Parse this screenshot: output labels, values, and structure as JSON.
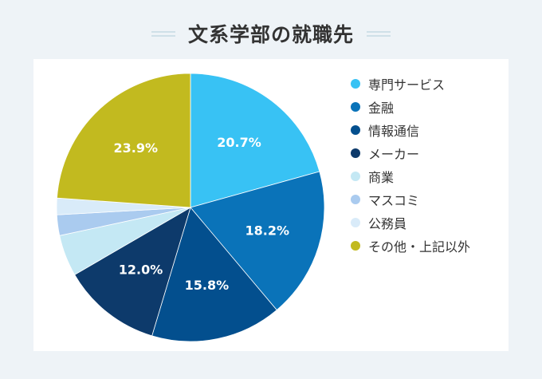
{
  "chart_data": {
    "type": "pie",
    "title": "文系学部の就職先",
    "categories": [
      "専門サービス",
      "金融",
      "情報通信",
      "メーカー",
      "商業",
      "マスコミ",
      "公務員",
      "その他・上記以外"
    ],
    "values": [
      20.7,
      18.2,
      15.8,
      12.0,
      5.0,
      2.5,
      2.0,
      23.9
    ],
    "data_labels": [
      "20.7%",
      "18.2%",
      "15.8%",
      "12.0%",
      "",
      "",
      "",
      "23.9%"
    ],
    "colors": [
      "#38c2f4",
      "#0a73b9",
      "#034f8e",
      "#0d3a6b",
      "#c4e8f4",
      "#aacbef",
      "#d9ebf9",
      "#c2ba1f"
    ],
    "legend_position": "right",
    "start_angle_deg": 0,
    "direction": "clockwise"
  }
}
